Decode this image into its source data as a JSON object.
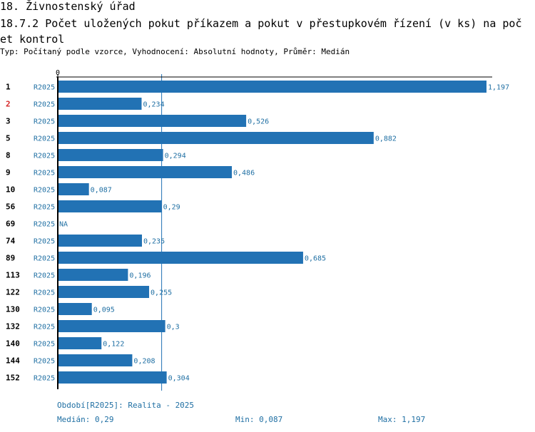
{
  "header": {
    "title": "18. Živnostenský úřad",
    "subtitle": "18.7.2 Počet uložených pokut příkazem a pokut v přestupkovém řízení (v ks) na počet kontrol",
    "meta": "Typ: Počítaný podle vzorce, Vyhodnocení: Absolutní hodnoty, Průměr: Medián"
  },
  "colors": {
    "bar": "#2272b4",
    "text": "#1f6fa3",
    "highlight": "#d62728",
    "axis": "#000000"
  },
  "chart_data": {
    "type": "bar",
    "orientation": "horizontal",
    "x_tick_label": "0",
    "period": "R2025",
    "highlighted_category": "2",
    "median_line": 0.29,
    "categories": [
      "1",
      "2",
      "3",
      "5",
      "8",
      "9",
      "10",
      "56",
      "69",
      "74",
      "89",
      "113",
      "122",
      "130",
      "132",
      "140",
      "144",
      "152"
    ],
    "values": [
      1.197,
      0.234,
      0.526,
      0.882,
      0.294,
      0.486,
      0.087,
      0.29,
      null,
      0.235,
      0.685,
      0.196,
      0.255,
      0.095,
      0.3,
      0.122,
      0.208,
      0.304
    ],
    "value_labels": [
      "1,197",
      "0,234",
      "0,526",
      "0,882",
      "0,294",
      "0,486",
      "0,087",
      "0,29",
      "NA",
      "0,235",
      "0,685",
      "0,196",
      "0,255",
      "0,095",
      "0,3",
      "0,122",
      "0,208",
      "0,304"
    ],
    "xlim": [
      0,
      1.197
    ]
  },
  "footer": {
    "period_note": "Období[R2025]: Realita - 2025",
    "median": "Medián: 0,29",
    "min": "Min: 0,087",
    "max": "Max: 1,197"
  }
}
